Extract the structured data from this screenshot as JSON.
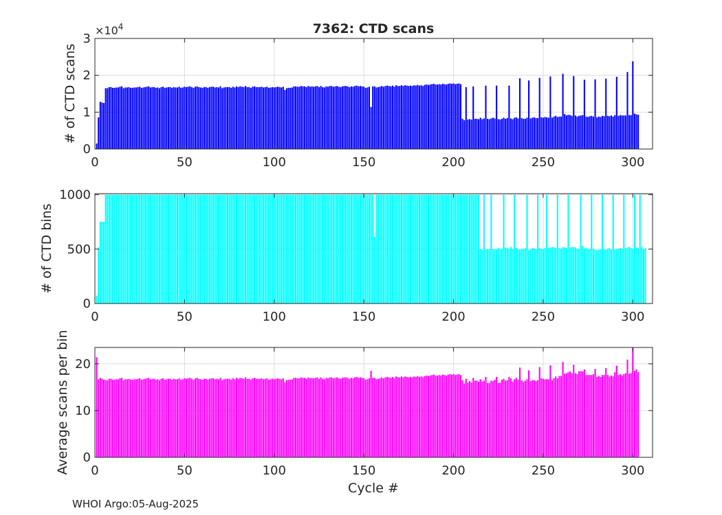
{
  "title": "7362: CTD scans",
  "xlabel": "Cycle #",
  "footer": "WHOI Argo:05-Aug-2025",
  "colors": {
    "scans": "#0000ff",
    "bins": "#00ffff",
    "avg": "#ff00ff",
    "axis": "#262626",
    "grid": "#dcdcdc"
  },
  "chart_data": [
    {
      "type": "bar",
      "ylabel": "# of CTD scans",
      "exponent_label": "×10",
      "exponent_power": "4",
      "xlim": [
        0,
        311
      ],
      "ylim": [
        0,
        3
      ],
      "xticks": [
        0,
        50,
        100,
        150,
        200,
        250,
        300
      ],
      "yticks": [
        0,
        1,
        2,
        3
      ],
      "grid": true,
      "series": [
        {
          "color": "#0000ff",
          "values": [
            0.15,
            0.86,
            1.28,
            1.26,
            1.25,
            1.65,
            1.65,
            1.68,
            1.68,
            1.66,
            1.66,
            1.67,
            1.67,
            1.69,
            1.7,
            1.65,
            1.67,
            1.67,
            1.68,
            1.66,
            1.66,
            1.67,
            1.67,
            1.68,
            1.69,
            1.66,
            1.67,
            1.68,
            1.69,
            1.7,
            1.67,
            1.68,
            1.68,
            1.66,
            1.67,
            1.65,
            1.68,
            1.69,
            1.66,
            1.67,
            1.68,
            1.68,
            1.66,
            1.68,
            1.67,
            1.67,
            1.69,
            1.66,
            1.67,
            1.69,
            1.68,
            1.69,
            1.7,
            1.68,
            1.66,
            1.69,
            1.7,
            1.68,
            1.67,
            1.66,
            1.68,
            1.68,
            1.66,
            1.68,
            1.69,
            1.69,
            1.67,
            1.68,
            1.67,
            1.7,
            1.65,
            1.67,
            1.68,
            1.68,
            1.68,
            1.66,
            1.69,
            1.67,
            1.7,
            1.68,
            1.7,
            1.69,
            1.68,
            1.71,
            1.68,
            1.68,
            1.66,
            1.69,
            1.7,
            1.68,
            1.68,
            1.68,
            1.69,
            1.67,
            1.68,
            1.69,
            1.66,
            1.67,
            1.68,
            1.67,
            1.68,
            1.69,
            1.68,
            1.67,
            1.69,
            1.6,
            1.65,
            1.66,
            1.66,
            1.67,
            1.7,
            1.7,
            1.69,
            1.69,
            1.71,
            1.7,
            1.7,
            1.68,
            1.71,
            1.69,
            1.7,
            1.69,
            1.7,
            1.71,
            1.68,
            1.71,
            1.68,
            1.67,
            1.7,
            1.69,
            1.71,
            1.71,
            1.69,
            1.7,
            1.71,
            1.69,
            1.68,
            1.7,
            1.71,
            1.71,
            1.7,
            1.68,
            1.7,
            1.69,
            1.71,
            1.72,
            1.7,
            1.71,
            1.7,
            1.69,
            1.66,
            1.67,
            1.69,
            1.14,
            1.7,
            1.7,
            1.67,
            1.68,
            1.69,
            1.71,
            1.69,
            1.71,
            1.72,
            1.71,
            1.7,
            1.72,
            1.69,
            1.73,
            1.71,
            1.71,
            1.73,
            1.71,
            1.73,
            1.72,
            1.71,
            1.72,
            1.71,
            1.73,
            1.72,
            1.74,
            1.72,
            1.73,
            1.71,
            1.74,
            1.75,
            1.74,
            1.75,
            1.76,
            1.77,
            1.75,
            1.75,
            1.76,
            1.75,
            1.77,
            1.76,
            1.75,
            1.77,
            1.78,
            1.77,
            1.78,
            1.76,
            1.77,
            1.78,
            1.76,
            0.82,
            0.78,
            1.68,
            0.8,
            0.81,
            0.8,
            1.7,
            0.82,
            0.82,
            0.81,
            0.85,
            0.81,
            0.83,
            1.72,
            0.82,
            0.81,
            0.83,
            0.85,
            0.83,
            1.72,
            0.81,
            0.8,
            0.82,
            0.85,
            0.82,
            0.84,
            1.72,
            0.83,
            0.81,
            0.85,
            0.86,
            0.83,
            1.92,
            0.84,
            0.82,
            0.82,
            0.85,
            1.86,
            0.83,
            0.85,
            0.86,
            0.84,
            0.84,
            1.93,
            0.86,
            0.85,
            0.87,
            0.86,
            0.85,
            1.97,
            0.85,
            0.88,
            0.9,
            0.87,
            0.88,
            0.88,
            2.04,
            0.95,
            0.91,
            0.93,
            0.92,
            0.9,
            1.98,
            0.91,
            0.88,
            0.9,
            0.91,
            0.92,
            1.88,
            0.88,
            0.87,
            0.89,
            0.9,
            0.88,
            1.89,
            0.86,
            0.88,
            0.87,
            0.9,
            0.89,
            1.91,
            0.9,
            0.89,
            0.91,
            0.88,
            0.92,
            1.96,
            0.9,
            0.92,
            0.91,
            0.91,
            0.91,
            2.09,
            0.92,
            0.92,
            2.38,
            0.96,
            0.94,
            0.93
          ]
        }
      ]
    },
    {
      "type": "bar",
      "ylabel": "# of CTD bins",
      "xlim": [
        0,
        311
      ],
      "ylim": [
        0,
        1010
      ],
      "xticks": [
        0,
        50,
        100,
        150,
        200,
        250,
        300
      ],
      "yticks": [
        0,
        500,
        1000
      ],
      "grid": true,
      "series": [
        {
          "color": "#00ffff",
          "values": [
            70,
            515,
            752,
            752,
            752,
            1000,
            1000,
            1000,
            1000,
            1000,
            1000,
            1000,
            1000,
            1000,
            1000,
            1000,
            1000,
            1000,
            1000,
            1000,
            1000,
            1000,
            1000,
            1000,
            1000,
            1000,
            1000,
            1000,
            1000,
            1000,
            1000,
            1000,
            1000,
            1000,
            1000,
            1000,
            1000,
            1000,
            1000,
            1000,
            1000,
            1000,
            1000,
            1000,
            1000,
            1000,
            1000,
            1000,
            1000,
            1000,
            1000,
            1000,
            1000,
            1000,
            1000,
            1000,
            1000,
            1000,
            1000,
            1000,
            1000,
            1000,
            1000,
            1000,
            1000,
            1000,
            1000,
            1000,
            1000,
            1000,
            1000,
            1000,
            1000,
            1000,
            1000,
            1000,
            1000,
            1000,
            1000,
            1000,
            1000,
            1000,
            1000,
            1000,
            1000,
            1000,
            1000,
            1000,
            1000,
            1000,
            1000,
            1000,
            1000,
            1000,
            1000,
            1000,
            1000,
            1000,
            1000,
            1000,
            1000,
            1000,
            1000,
            1000,
            1000,
            1000,
            1000,
            1000,
            1000,
            1000,
            1000,
            1000,
            1000,
            1000,
            1000,
            1000,
            1000,
            1000,
            1000,
            1000,
            1000,
            1000,
            1000,
            1000,
            1000,
            1000,
            1000,
            1000,
            1000,
            1000,
            1000,
            1000,
            1000,
            1000,
            1000,
            1000,
            1000,
            1000,
            1000,
            1000,
            1000,
            1000,
            1000,
            1000,
            1000,
            1000,
            1000,
            1000,
            1000,
            1000,
            1000,
            1000,
            1000,
            1000,
            1000,
            615,
            1000,
            1000,
            1000,
            1000,
            1000,
            1000,
            1000,
            1000,
            1000,
            1000,
            1000,
            1000,
            1000,
            1000,
            1000,
            1000,
            1000,
            1000,
            1000,
            1000,
            1000,
            1000,
            1000,
            1000,
            1000,
            1000,
            1000,
            1000,
            1000,
            1000,
            1000,
            1000,
            1000,
            1000,
            1000,
            1000,
            1000,
            1000,
            1000,
            1000,
            1000,
            1000,
            1000,
            1000,
            1000,
            1000,
            1000,
            1000,
            1000,
            1000,
            1000,
            1000,
            1000,
            1000,
            1000,
            1000,
            1000,
            1000,
            500,
            495,
            1000,
            500,
            498,
            500,
            1000,
            500,
            500,
            500,
            510,
            500,
            505,
            1000,
            515,
            510,
            505,
            520,
            500,
            1000,
            510,
            500,
            495,
            505,
            500,
            510,
            1000,
            490,
            500,
            510,
            505,
            500,
            1000,
            510,
            505,
            500,
            510,
            1000,
            510,
            515,
            520,
            515,
            510,
            1000,
            510,
            505,
            520,
            515,
            510,
            1000,
            515,
            520,
            520,
            515,
            505,
            505,
            1000,
            530,
            505,
            510,
            500,
            500,
            1000,
            505,
            495,
            490,
            495,
            500,
            1000,
            500,
            495,
            505,
            510,
            495,
            1000,
            495,
            500,
            505,
            510,
            505,
            1000,
            510,
            515,
            520,
            510,
            505,
            1000,
            515,
            510,
            1000,
            520,
            500,
            510
          ]
        }
      ]
    },
    {
      "type": "bar",
      "ylabel": "Average scans per bin",
      "xlim": [
        0,
        311
      ],
      "ylim": [
        0,
        23.5
      ],
      "xticks": [
        0,
        50,
        100,
        150,
        200,
        250,
        300
      ],
      "yticks": [
        0,
        10,
        20
      ],
      "grid": true,
      "series": [
        {
          "color": "#ff00ff",
          "values": [
            21.4,
            16.7,
            17.0,
            16.8,
            16.6,
            16.5,
            16.5,
            16.8,
            16.8,
            16.6,
            16.6,
            16.7,
            16.7,
            16.9,
            17.0,
            16.5,
            16.7,
            16.7,
            16.8,
            16.6,
            16.6,
            16.7,
            16.7,
            16.8,
            16.9,
            16.6,
            16.7,
            16.8,
            16.9,
            17.0,
            16.7,
            16.8,
            16.8,
            16.6,
            16.7,
            16.5,
            16.8,
            16.9,
            16.6,
            16.7,
            16.8,
            16.8,
            16.6,
            16.8,
            16.7,
            16.7,
            16.9,
            16.6,
            16.7,
            16.9,
            16.8,
            16.9,
            17.0,
            16.8,
            16.6,
            16.9,
            17.0,
            16.8,
            16.7,
            16.6,
            16.8,
            16.8,
            16.6,
            16.8,
            16.9,
            16.9,
            16.7,
            16.8,
            16.7,
            17.0,
            16.5,
            16.7,
            16.8,
            16.8,
            16.8,
            16.6,
            16.9,
            16.7,
            17.0,
            16.8,
            17.0,
            16.9,
            16.8,
            17.1,
            16.8,
            16.8,
            16.6,
            16.9,
            17.0,
            16.8,
            16.8,
            16.8,
            16.9,
            16.7,
            16.8,
            16.9,
            16.6,
            16.7,
            16.8,
            16.7,
            16.8,
            16.9,
            16.8,
            16.7,
            16.9,
            16.0,
            16.5,
            16.6,
            16.6,
            16.7,
            17.0,
            17.0,
            16.9,
            16.9,
            17.1,
            17.0,
            17.0,
            16.8,
            17.1,
            16.9,
            17.0,
            16.9,
            17.0,
            17.1,
            16.8,
            17.1,
            16.8,
            16.7,
            17.0,
            16.9,
            17.1,
            17.1,
            16.9,
            17.0,
            17.1,
            16.9,
            16.8,
            17.0,
            17.1,
            17.1,
            17.0,
            16.8,
            17.0,
            16.9,
            17.1,
            17.2,
            17.0,
            17.1,
            17.0,
            16.9,
            16.6,
            16.7,
            16.9,
            18.5,
            17.0,
            17.0,
            16.7,
            16.8,
            16.9,
            17.1,
            16.9,
            17.1,
            17.2,
            17.1,
            17.0,
            17.2,
            16.9,
            17.3,
            17.1,
            17.1,
            17.3,
            17.1,
            17.3,
            17.2,
            17.1,
            17.2,
            17.1,
            17.3,
            17.2,
            17.4,
            17.2,
            17.3,
            17.1,
            17.4,
            17.5,
            17.4,
            17.5,
            17.6,
            17.7,
            17.5,
            17.5,
            17.6,
            17.5,
            17.7,
            17.6,
            17.5,
            17.7,
            17.8,
            17.7,
            17.8,
            17.6,
            17.7,
            17.8,
            17.6,
            16.5,
            15.8,
            16.8,
            16.0,
            16.3,
            16.0,
            17.0,
            16.4,
            16.4,
            16.2,
            16.7,
            16.2,
            16.4,
            17.2,
            15.9,
            15.9,
            16.4,
            16.3,
            16.6,
            17.2,
            15.9,
            16.0,
            16.6,
            16.8,
            16.4,
            16.5,
            17.2,
            16.9,
            16.2,
            16.7,
            17.0,
            16.6,
            19.2,
            16.5,
            16.2,
            16.4,
            16.7,
            18.6,
            16.3,
            16.5,
            16.5,
            16.3,
            16.5,
            19.3,
            16.9,
            16.8,
            16.7,
            16.7,
            16.7,
            19.7,
            16.5,
            16.9,
            17.3,
            16.9,
            17.4,
            17.4,
            20.4,
            17.9,
            18.0,
            18.2,
            18.4,
            18.0,
            19.8,
            18.0,
            17.8,
            18.4,
            18.4,
            18.4,
            18.8,
            17.6,
            17.6,
            17.6,
            17.6,
            17.8,
            18.9,
            17.2,
            17.4,
            17.2,
            17.6,
            17.6,
            19.1,
            17.6,
            17.3,
            17.5,
            17.3,
            18.2,
            19.6,
            17.6,
            17.8,
            17.5,
            17.8,
            18.0,
            20.9,
            17.9,
            18.0,
            23.4,
            18.5,
            18.8,
            18.2
          ]
        }
      ]
    }
  ]
}
